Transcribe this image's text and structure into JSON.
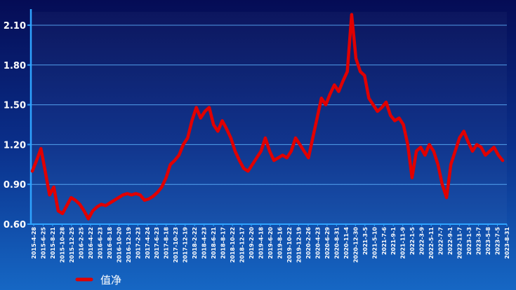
{
  "chart_data": {
    "type": "line",
    "title": "",
    "xlabel": "",
    "ylabel": "",
    "ylim": [
      0.6,
      2.2
    ],
    "yticks": [
      "0.60",
      "0.90",
      "1.20",
      "1.50",
      "1.80",
      "2.10"
    ],
    "grid": true,
    "legend_position": "bottom-left",
    "series_color": "#e00000",
    "x_tick_labels": [
      "2015-4-28",
      "2015-6-25",
      "2015-8-21",
      "2015-10-28",
      "2015-12-25",
      "2016-2-25",
      "2016-4-22",
      "2016-6-23",
      "2016-8-18",
      "2016-10-20",
      "2016-12-19",
      "2017-2-23",
      "2017-4-24",
      "2017-6-23",
      "2017-8-18",
      "2017-10-23",
      "2017-12-19",
      "2018-2-22",
      "2018-4-23",
      "2018-6-21",
      "2018-8-17",
      "2018-10-22",
      "2018-12-17",
      "2019-2-20",
      "2019-4-18",
      "2019-6-20",
      "2019-8-16",
      "2019-10-22",
      "2019-12-19",
      "2020-2-26",
      "2020-4-23",
      "2020-6-29",
      "2020-8-31",
      "2020-11-4",
      "2020-12-30",
      "2021-3-5",
      "2021-5-10",
      "2021-7-6",
      "2021-9-1",
      "2021-11-9",
      "2022-1-5",
      "2022-3-9",
      "2022-5-11",
      "2022-7-7",
      "2022-9-1",
      "2022-11-7",
      "2023-1-3",
      "2023-3-7",
      "2023-5-8",
      "2023-7-5",
      "2023-8-31"
    ],
    "series": [
      {
        "name": "值净",
        "values": [
          1.0,
          1.08,
          1.17,
          1.0,
          0.82,
          0.88,
          0.7,
          0.68,
          0.74,
          0.8,
          0.78,
          0.75,
          0.7,
          0.64,
          0.7,
          0.73,
          0.75,
          0.74,
          0.76,
          0.78,
          0.8,
          0.82,
          0.83,
          0.82,
          0.83,
          0.82,
          0.78,
          0.79,
          0.81,
          0.84,
          0.88,
          0.95,
          1.05,
          1.08,
          1.12,
          1.2,
          1.25,
          1.38,
          1.48,
          1.4,
          1.45,
          1.48,
          1.35,
          1.3,
          1.38,
          1.32,
          1.25,
          1.15,
          1.08,
          1.02,
          1.0,
          1.05,
          1.1,
          1.15,
          1.25,
          1.15,
          1.08,
          1.1,
          1.12,
          1.1,
          1.15,
          1.25,
          1.2,
          1.15,
          1.1,
          1.25,
          1.4,
          1.55,
          1.5,
          1.58,
          1.65,
          1.6,
          1.68,
          1.75,
          2.18,
          1.85,
          1.75,
          1.72,
          1.55,
          1.5,
          1.45,
          1.48,
          1.52,
          1.42,
          1.38,
          1.4,
          1.35,
          1.2,
          0.95,
          1.15,
          1.18,
          1.12,
          1.2,
          1.15,
          1.05,
          0.9,
          0.8,
          1.05,
          1.15,
          1.25,
          1.3,
          1.22,
          1.15,
          1.2,
          1.18,
          1.12,
          1.15,
          1.18,
          1.12,
          1.08
        ]
      }
    ]
  }
}
